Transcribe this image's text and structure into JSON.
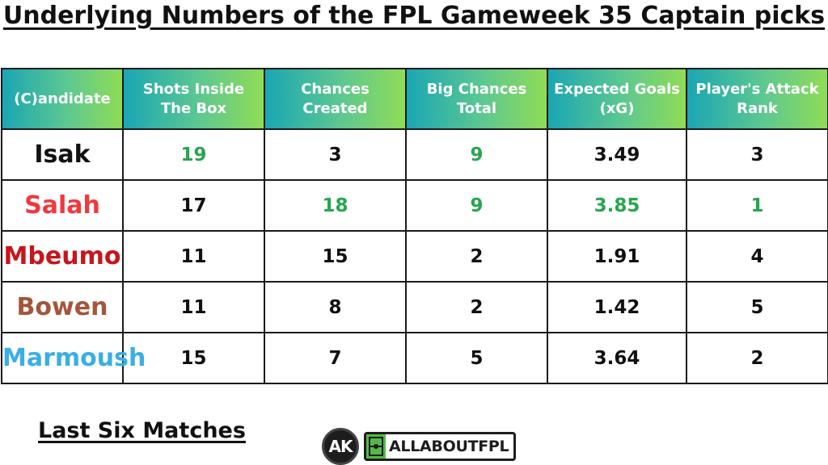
{
  "title": "Underlying Numbers of the FPL Gameweek 35 Captain picks",
  "table": {
    "headers": [
      "(C)andidate",
      "Shots Inside The Box",
      "Chances Created",
      "Big Chances Total",
      "Expected Goals (xG)",
      "Player's Attack Rank"
    ],
    "rows": [
      {
        "name": "Isak",
        "name_color": "#111111",
        "values": [
          "19",
          "3",
          "9",
          "3.49",
          "3"
        ],
        "highlight": [
          true,
          false,
          true,
          false,
          false
        ]
      },
      {
        "name": "Salah",
        "name_color": "#f0393d",
        "values": [
          "17",
          "18",
          "9",
          "3.85",
          "1"
        ],
        "highlight": [
          false,
          true,
          true,
          true,
          true
        ]
      },
      {
        "name": "Mbeumo",
        "name_color": "#c8141c",
        "values": [
          "11",
          "15",
          "2",
          "1.91",
          "4"
        ],
        "highlight": [
          false,
          false,
          false,
          false,
          false
        ]
      },
      {
        "name": "Bowen",
        "name_color": "#a4553a",
        "values": [
          "11",
          "8",
          "2",
          "1.42",
          "5"
        ],
        "highlight": [
          false,
          false,
          false,
          false,
          false
        ]
      },
      {
        "name": "Marmoush",
        "name_color": "#3aaee6",
        "values": [
          "15",
          "7",
          "5",
          "3.64",
          "2"
        ],
        "highlight": [
          false,
          false,
          false,
          false,
          false
        ]
      }
    ]
  },
  "footer": {
    "label": "Last Six Matches",
    "logo_initials": "AK",
    "brand_text": "ALLABOUTFPL"
  },
  "colors": {
    "header_gradient_start": "#1aa6b4",
    "header_gradient_end": "#8fdc55",
    "highlight_green": "#27a64f",
    "brand_green": "#55b848"
  }
}
